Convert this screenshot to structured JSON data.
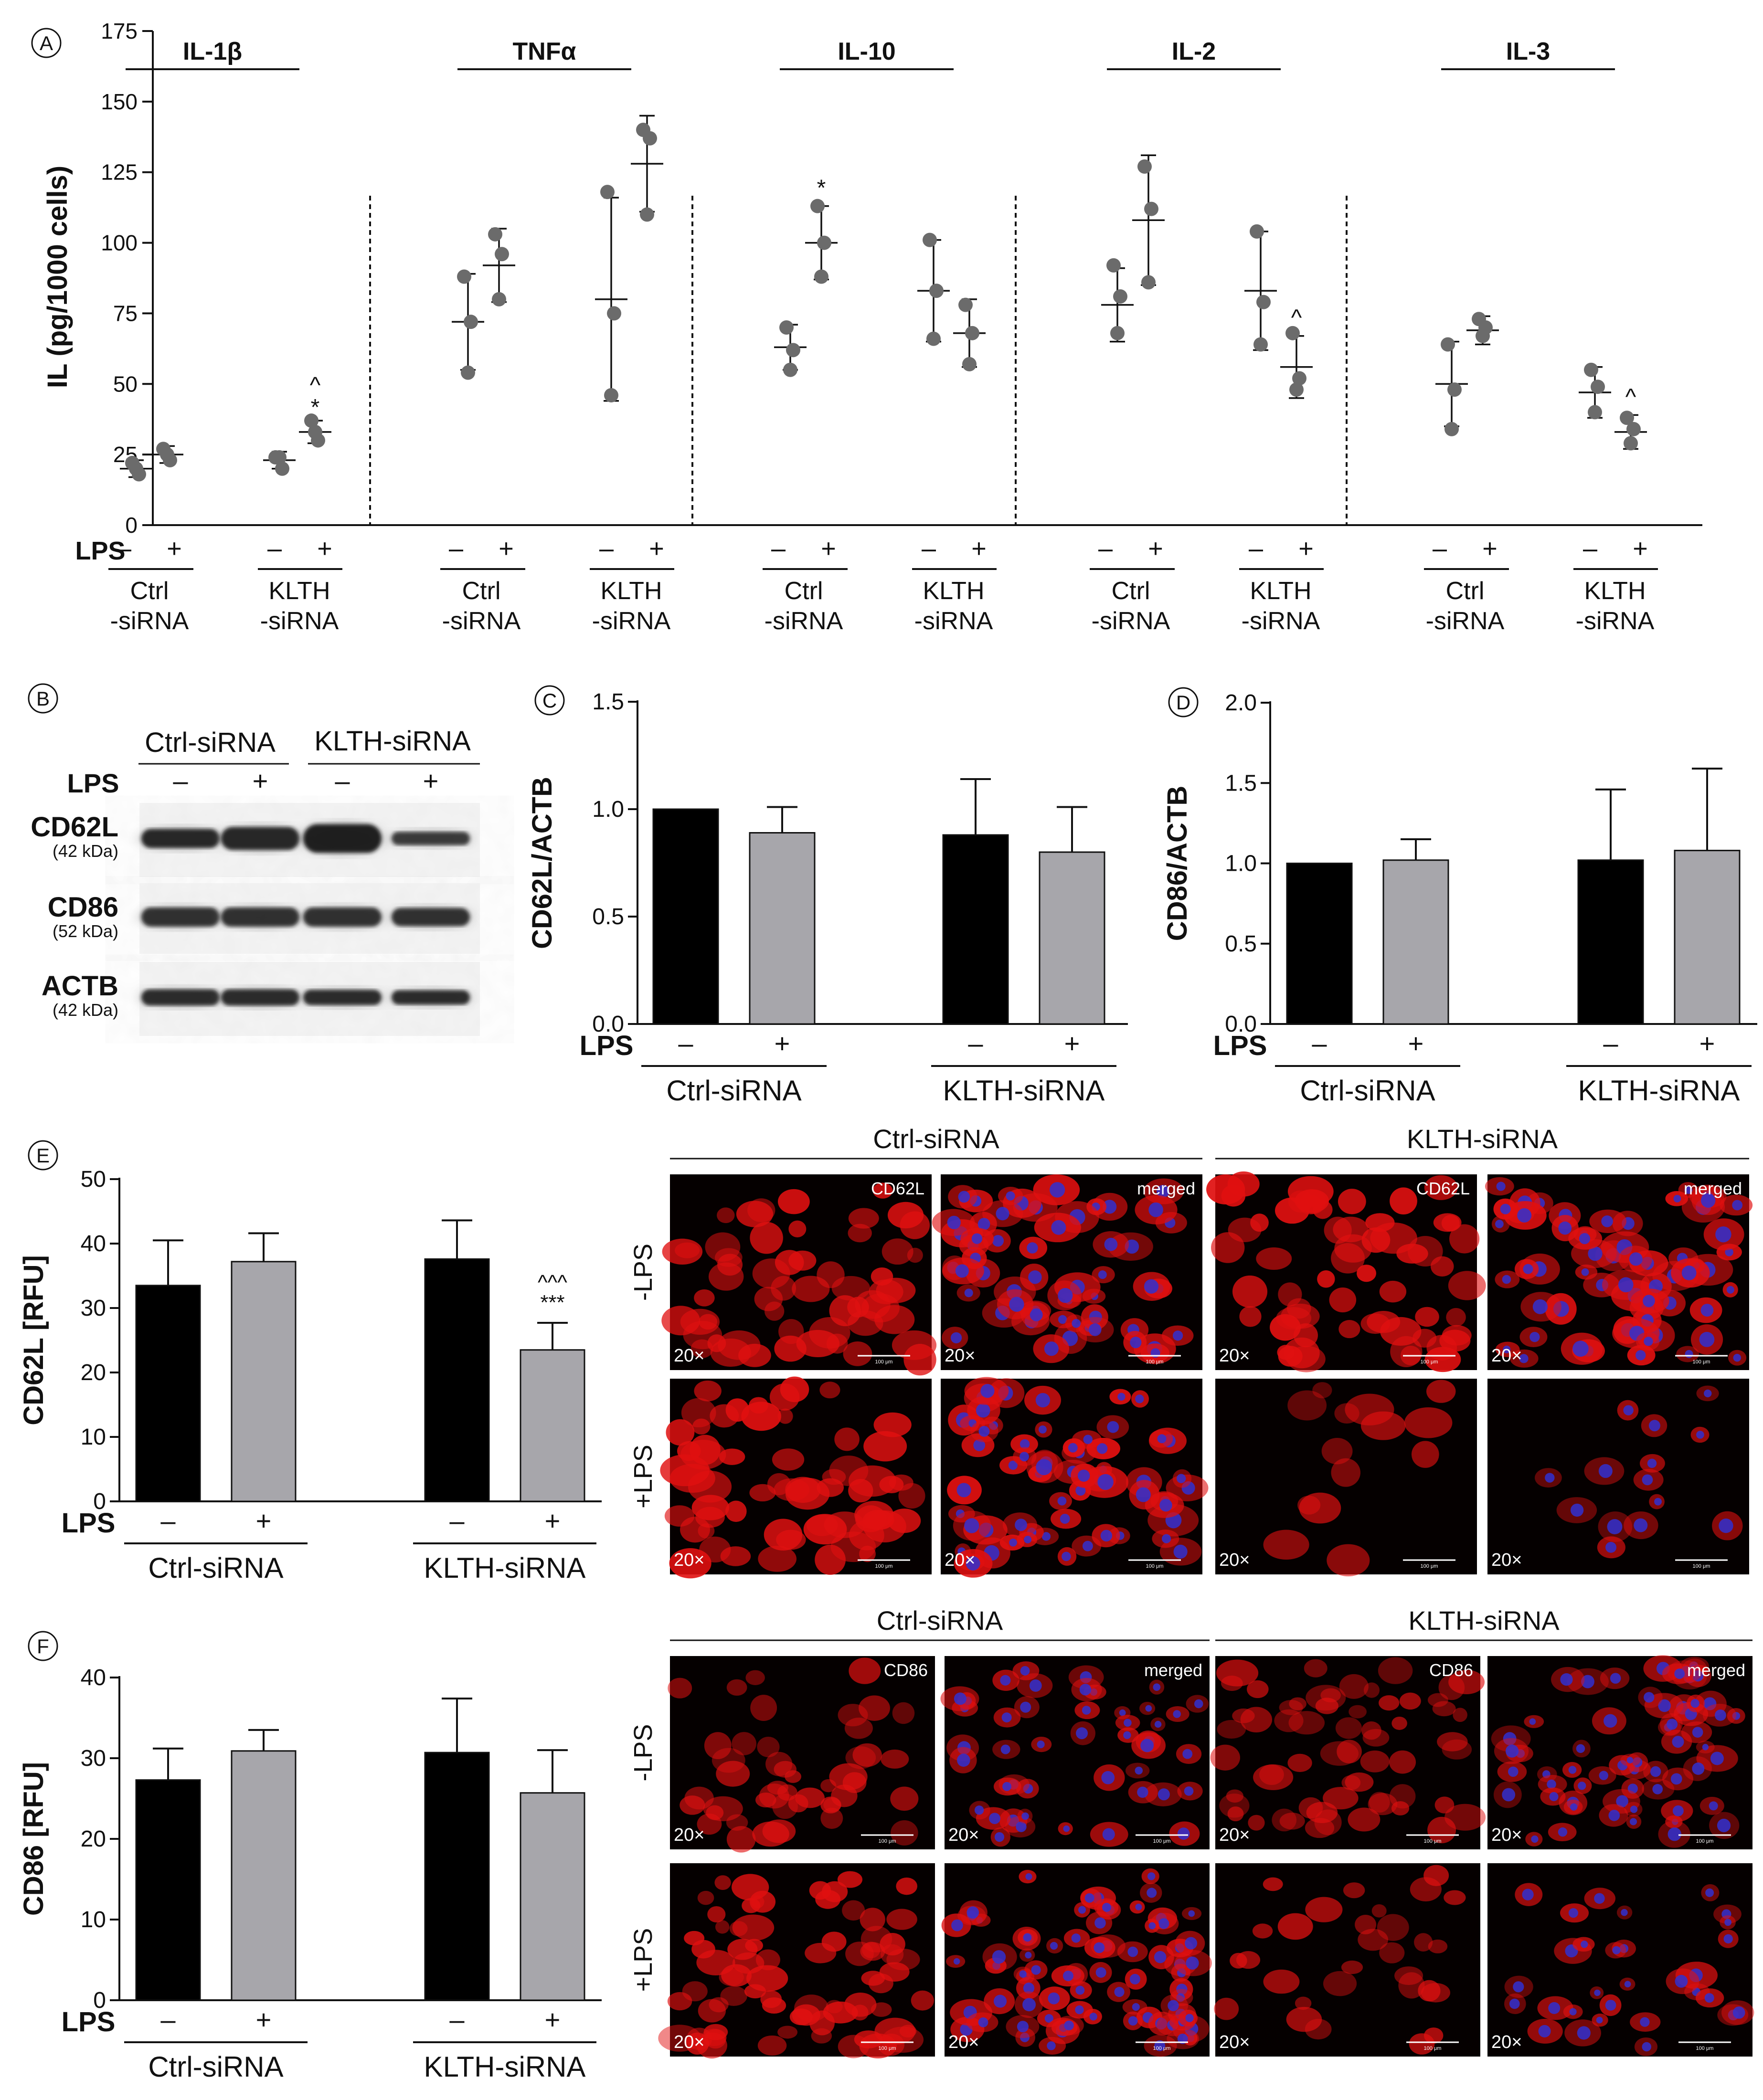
{
  "panel_letters": [
    "A",
    "B",
    "C",
    "D",
    "E",
    "F"
  ],
  "lps_label": "LPS",
  "minus": "–",
  "plus": "+",
  "ctrl_label": "Ctrl-siRNA",
  "klth_label": "KLTH-siRNA",
  "ctrl_line1": "Ctrl",
  "klth_line1": "KLTH",
  "sirna_line2": "-siRNA",
  "panel_b": {
    "bands": [
      {
        "name": "CD62L",
        "kda": "(42 kDa)"
      },
      {
        "name": "CD86",
        "kda": "(52 kDa)"
      },
      {
        "name": "ACTB",
        "kda": "(42 kDa)"
      }
    ]
  },
  "micro": {
    "scale_text": "100 μm",
    "mag": "20×",
    "row_minus": "-LPS",
    "row_plus": "+LPS",
    "e_labels": [
      "CD62L",
      "merged",
      "CD62L",
      "merged"
    ],
    "f_labels": [
      "CD86",
      "merged",
      "CD86",
      "merged"
    ]
  },
  "colors": {
    "ctrl_bar": "#000000",
    "lps_bar": "#a7a6ab",
    "dot": "#6b6b6b",
    "red_stain": "#e01010",
    "dapi": "#3030d0"
  },
  "chart_data": [
    {
      "panel": "A",
      "type": "scatter",
      "ylabel": "IL (pg/1000 cells)",
      "ylim": [
        0,
        175
      ],
      "yticks": [
        0,
        25,
        50,
        75,
        100,
        125,
        150,
        175
      ],
      "groups": [
        {
          "title": "IL-1β",
          "conditions": [
            {
              "group": "Ctrl-siRNA",
              "lps": "–",
              "mean": 20,
              "sd": 3,
              "points": [
                22,
                18,
                20
              ],
              "mark": ""
            },
            {
              "group": "Ctrl-siRNA",
              "lps": "+",
              "mean": 25,
              "sd": 3,
              "points": [
                27,
                23,
                25
              ],
              "mark": ""
            },
            {
              "group": "KLTH-siRNA",
              "lps": "–",
              "mean": 23,
              "sd": 3,
              "points": [
                24,
                20,
                24
              ],
              "mark": ""
            },
            {
              "group": "KLTH-siRNA",
              "lps": "+",
              "mean": 33,
              "sd": 4,
              "points": [
                37,
                30,
                33
              ],
              "mark": "^\n*"
            }
          ]
        },
        {
          "title": "TNFα",
          "conditions": [
            {
              "group": "Ctrl-siRNA",
              "lps": "–",
              "mean": 72,
              "sd": 17,
              "points": [
                88,
                72,
                54
              ],
              "mark": ""
            },
            {
              "group": "Ctrl-siRNA",
              "lps": "+",
              "mean": 92,
              "sd": 13,
              "points": [
                103,
                96,
                80
              ],
              "mark": ""
            },
            {
              "group": "KLTH-siRNA",
              "lps": "–",
              "mean": 80,
              "sd": 36,
              "points": [
                118,
                75,
                46
              ],
              "mark": ""
            },
            {
              "group": "KLTH-siRNA",
              "lps": "+",
              "mean": 128,
              "sd": 17,
              "points": [
                140,
                137,
                110
              ],
              "mark": ""
            }
          ]
        },
        {
          "title": "IL-10",
          "conditions": [
            {
              "group": "Ctrl-siRNA",
              "lps": "–",
              "mean": 63,
              "sd": 8,
              "points": [
                70,
                62,
                55
              ],
              "mark": ""
            },
            {
              "group": "Ctrl-siRNA",
              "lps": "+",
              "mean": 100,
              "sd": 13,
              "points": [
                113,
                100,
                88
              ],
              "mark": "*"
            },
            {
              "group": "KLTH-siRNA",
              "lps": "–",
              "mean": 83,
              "sd": 18,
              "points": [
                101,
                83,
                66
              ],
              "mark": ""
            },
            {
              "group": "KLTH-siRNA",
              "lps": "+",
              "mean": 68,
              "sd": 12,
              "points": [
                78,
                68,
                57
              ],
              "mark": ""
            }
          ]
        },
        {
          "title": "IL-2",
          "conditions": [
            {
              "group": "Ctrl-siRNA",
              "lps": "–",
              "mean": 78,
              "sd": 13,
              "points": [
                92,
                81,
                68
              ],
              "mark": ""
            },
            {
              "group": "Ctrl-siRNA",
              "lps": "+",
              "mean": 108,
              "sd": 23,
              "points": [
                127,
                112,
                86
              ],
              "mark": ""
            },
            {
              "group": "KLTH-siRNA",
              "lps": "–",
              "mean": 83,
              "sd": 21,
              "points": [
                104,
                79,
                64
              ],
              "mark": ""
            },
            {
              "group": "KLTH-siRNA",
              "lps": "+",
              "mean": 56,
              "sd": 11,
              "points": [
                68,
                52,
                48
              ],
              "mark": "^"
            }
          ]
        },
        {
          "title": "IL-3",
          "conditions": [
            {
              "group": "Ctrl-siRNA",
              "lps": "–",
              "mean": 50,
              "sd": 15,
              "points": [
                64,
                48,
                34
              ],
              "mark": ""
            },
            {
              "group": "Ctrl-siRNA",
              "lps": "+",
              "mean": 69,
              "sd": 5,
              "points": [
                73,
                70,
                67
              ],
              "mark": ""
            },
            {
              "group": "KLTH-siRNA",
              "lps": "–",
              "mean": 47,
              "sd": 9,
              "points": [
                55,
                49,
                40
              ],
              "mark": ""
            },
            {
              "group": "KLTH-siRNA",
              "lps": "+",
              "mean": 33,
              "sd": 6,
              "points": [
                38,
                34,
                29
              ],
              "mark": "^"
            }
          ]
        }
      ]
    },
    {
      "panel": "C",
      "type": "bar",
      "ylabel": "CD62L/ACTB",
      "ylim": [
        0,
        1.5
      ],
      "yticks": [
        "0.0",
        "0.5",
        "1.0",
        "1.5"
      ],
      "bars": [
        {
          "group": "Ctrl-siRNA",
          "lps": "–",
          "value": 1.0,
          "err": 0,
          "mark": ""
        },
        {
          "group": "Ctrl-siRNA",
          "lps": "+",
          "value": 0.89,
          "err": 0.12,
          "mark": ""
        },
        {
          "group": "KLTH-siRNA",
          "lps": "–",
          "value": 0.88,
          "err": 0.26,
          "mark": ""
        },
        {
          "group": "KLTH-siRNA",
          "lps": "+",
          "value": 0.8,
          "err": 0.21,
          "mark": ""
        }
      ]
    },
    {
      "panel": "D",
      "type": "bar",
      "ylabel": "CD86/ACTB",
      "ylim": [
        0,
        2.0
      ],
      "yticks": [
        "0.0",
        "0.5",
        "1.0",
        "1.5",
        "2.0"
      ],
      "bars": [
        {
          "group": "Ctrl-siRNA",
          "lps": "–",
          "value": 1.0,
          "err": 0,
          "mark": ""
        },
        {
          "group": "Ctrl-siRNA",
          "lps": "+",
          "value": 1.02,
          "err": 0.13,
          "mark": ""
        },
        {
          "group": "KLTH-siRNA",
          "lps": "–",
          "value": 1.02,
          "err": 0.44,
          "mark": ""
        },
        {
          "group": "KLTH-siRNA",
          "lps": "+",
          "value": 1.08,
          "err": 0.51,
          "mark": ""
        }
      ]
    },
    {
      "panel": "E",
      "type": "bar",
      "ylabel": "CD62L [RFU]",
      "ylim": [
        0,
        50
      ],
      "yticks": [
        "0",
        "10",
        "20",
        "30",
        "40",
        "50"
      ],
      "bars": [
        {
          "group": "Ctrl-siRNA",
          "lps": "–",
          "value": 33.5,
          "err": 7,
          "mark": ""
        },
        {
          "group": "Ctrl-siRNA",
          "lps": "+",
          "value": 37.2,
          "err": 4.4,
          "mark": ""
        },
        {
          "group": "KLTH-siRNA",
          "lps": "–",
          "value": 37.6,
          "err": 6,
          "mark": ""
        },
        {
          "group": "KLTH-siRNA",
          "lps": "+",
          "value": 23.5,
          "err": 4.2,
          "mark": "^^^\n***"
        }
      ]
    },
    {
      "panel": "F",
      "type": "bar",
      "ylabel": "CD86 [RFU]",
      "ylim": [
        0,
        40
      ],
      "yticks": [
        "0",
        "10",
        "20",
        "30",
        "40"
      ],
      "bars": [
        {
          "group": "Ctrl-siRNA",
          "lps": "–",
          "value": 27.3,
          "err": 3.9,
          "mark": ""
        },
        {
          "group": "Ctrl-siRNA",
          "lps": "+",
          "value": 30.9,
          "err": 2.6,
          "mark": ""
        },
        {
          "group": "KLTH-siRNA",
          "lps": "–",
          "value": 30.7,
          "err": 6.7,
          "mark": ""
        },
        {
          "group": "KLTH-siRNA",
          "lps": "+",
          "value": 25.7,
          "err": 5.3,
          "mark": ""
        }
      ]
    }
  ]
}
